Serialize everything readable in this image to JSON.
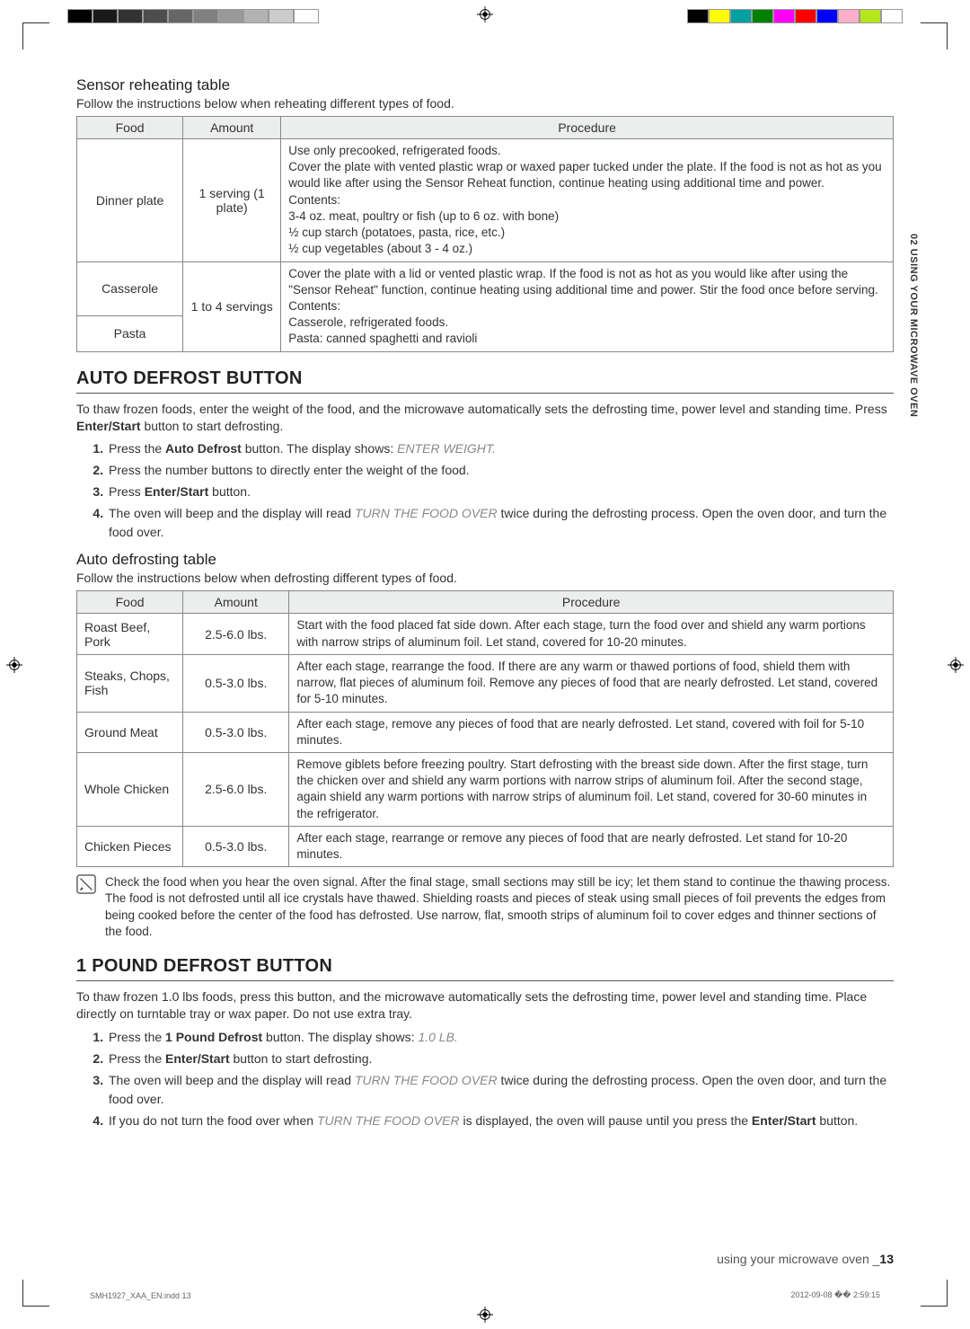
{
  "colorbar_gray": [
    "#000000",
    "#1a1a1a",
    "#333333",
    "#4d4d4d",
    "#666666",
    "#808080",
    "#999999",
    "#b3b3b3",
    "#cccccc",
    "#ffffff"
  ],
  "colorbar_color": [
    "#000000",
    "#ffff00",
    "#00a0a0",
    "#008000",
    "#ff00ff",
    "#ff0000",
    "#0000ff",
    "#ffaec9",
    "#b5e61d",
    "#ffffff"
  ],
  "side_tab": "02 USING YOUR MICROWAVE OVEN",
  "reheat": {
    "title": "Sensor reheating table",
    "lead": "Follow the instructions below when reheating different types of food.",
    "cols": [
      "Food",
      "Amount",
      "Procedure"
    ],
    "rows": [
      {
        "food": "Dinner plate",
        "amount": "1 serving (1 plate)",
        "proc": "Use only precooked, refrigerated foods.\nCover the plate with vented plastic wrap or waxed paper tucked under the plate. If the food is not as hot as you would like after using the Sensor Reheat function, continue heating using additional time and power.\nContents:\n3-4 oz. meat, poultry or fish (up to 6 oz. with bone)\n½ cup starch (potatoes, pasta, rice, etc.)\n½ cup vegetables (about 3 - 4 oz.)"
      },
      {
        "food": "Casserole",
        "amount": "1 to 4 servings",
        "proc": "Cover the plate with a lid or vented plastic wrap. If the food is not as hot as you would like after using the \"Sensor Reheat\" function, continue heating using additional time and power. Stir the food once before serving.\nContents:\nCasserole, refrigerated foods.\nPasta: canned spaghetti and ravioli",
        "food2": "Pasta"
      }
    ]
  },
  "auto_defrost": {
    "heading": "AUTO DEFROST BUTTON",
    "intro_a": "To thaw frozen foods, enter the weight of the food, and the microwave automatically sets the defrosting time, power level and standing time. Press ",
    "intro_b": "Enter/Start",
    "intro_c": " button to start defrosting.",
    "steps": [
      {
        "pre": "Press the ",
        "bold": "Auto Defrost",
        "mid": " button. The display shows: ",
        "msg": "ENTER WEIGHT."
      },
      {
        "text": "Press the number buttons to directly enter the weight of the food."
      },
      {
        "pre": "Press ",
        "bold": "Enter/Start",
        "mid": " button."
      },
      {
        "pre": "The oven will beep and the display will read ",
        "msg": "TURN THE FOOD OVER",
        "post": " twice during the defrosting process. Open the oven door, and turn the food over."
      }
    ],
    "table_title": "Auto defrosting table",
    "table_lead": "Follow the instructions below when defrosting different types of food.",
    "cols": [
      "Food",
      "Amount",
      "Procedure"
    ],
    "rows": [
      {
        "food": "Roast Beef, Pork",
        "amount": "2.5-6.0 lbs.",
        "proc": "Start with the food placed fat side down. After each stage, turn the food over and shield any warm portions with narrow strips of aluminum foil. Let stand, covered for 10-20 minutes."
      },
      {
        "food": "Steaks, Chops, Fish",
        "amount": "0.5-3.0 lbs.",
        "proc": "After each stage, rearrange the food. If there are any warm or thawed portions of food, shield them with narrow, flat pieces of aluminum foil. Remove any pieces of food that are nearly defrosted. Let stand, covered for 5-10 minutes."
      },
      {
        "food": "Ground Meat",
        "amount": "0.5-3.0 lbs.",
        "proc": "After each stage, remove any pieces of food that are nearly defrosted. Let stand, covered with foil for 5-10 minutes."
      },
      {
        "food": "Whole Chicken",
        "amount": "2.5-6.0 lbs.",
        "proc": "Remove giblets before freezing poultry. Start defrosting with the breast side down. After the first stage, turn the chicken over and shield any warm portions with narrow strips of aluminum foil. After the second stage, again shield any warm portions with narrow strips of aluminum foil. Let stand, covered for 30-60 minutes in the refrigerator."
      },
      {
        "food": "Chicken Pieces",
        "amount": "0.5-3.0 lbs.",
        "proc": "After each stage, rearrange or remove any pieces of food that are nearly defrosted. Let stand for 10-20 minutes."
      }
    ],
    "note": "Check the food when you hear the oven signal. After the final stage, small sections may still be icy; let them stand to continue the thawing process. The food is not defrosted until all ice crystals have thawed. Shielding roasts and pieces of steak using small pieces of foil prevents the edges from being cooked before the center of the food has defrosted. Use narrow, flat, smooth strips of aluminum foil to cover edges and thinner sections of the food."
  },
  "pound_defrost": {
    "heading": "1 POUND DEFROST BUTTON",
    "intro": "To thaw frozen 1.0 lbs foods, press this button, and the microwave automatically sets the defrosting time, power level and standing time. Place directly on turntable tray or wax paper. Do not use extra tray.",
    "steps": [
      {
        "pre": "Press the ",
        "bold": "1 Pound Defrost",
        "mid": " button. The display shows: ",
        "msg": "1.0 LB."
      },
      {
        "pre": "Press the ",
        "bold": "Enter/Start",
        "mid": " button to start defrosting."
      },
      {
        "pre": "The oven will beep and the display will read ",
        "msg": "TURN THE FOOD OVER",
        "post": " twice during the defrosting process. Open the oven door, and turn the food over."
      },
      {
        "pre": "If you do not turn the food over when ",
        "msg": "TURN THE FOOD OVER",
        "mid": " is displayed, the oven will pause until you press the ",
        "bold": "Enter/Start",
        "post": " button."
      }
    ]
  },
  "footer": {
    "label": "using your microwave oven _",
    "page": "13"
  },
  "slug": {
    "left": "SMH1927_XAA_EN.indd   13",
    "right": "2012-09-08   �� 2:59:15"
  }
}
